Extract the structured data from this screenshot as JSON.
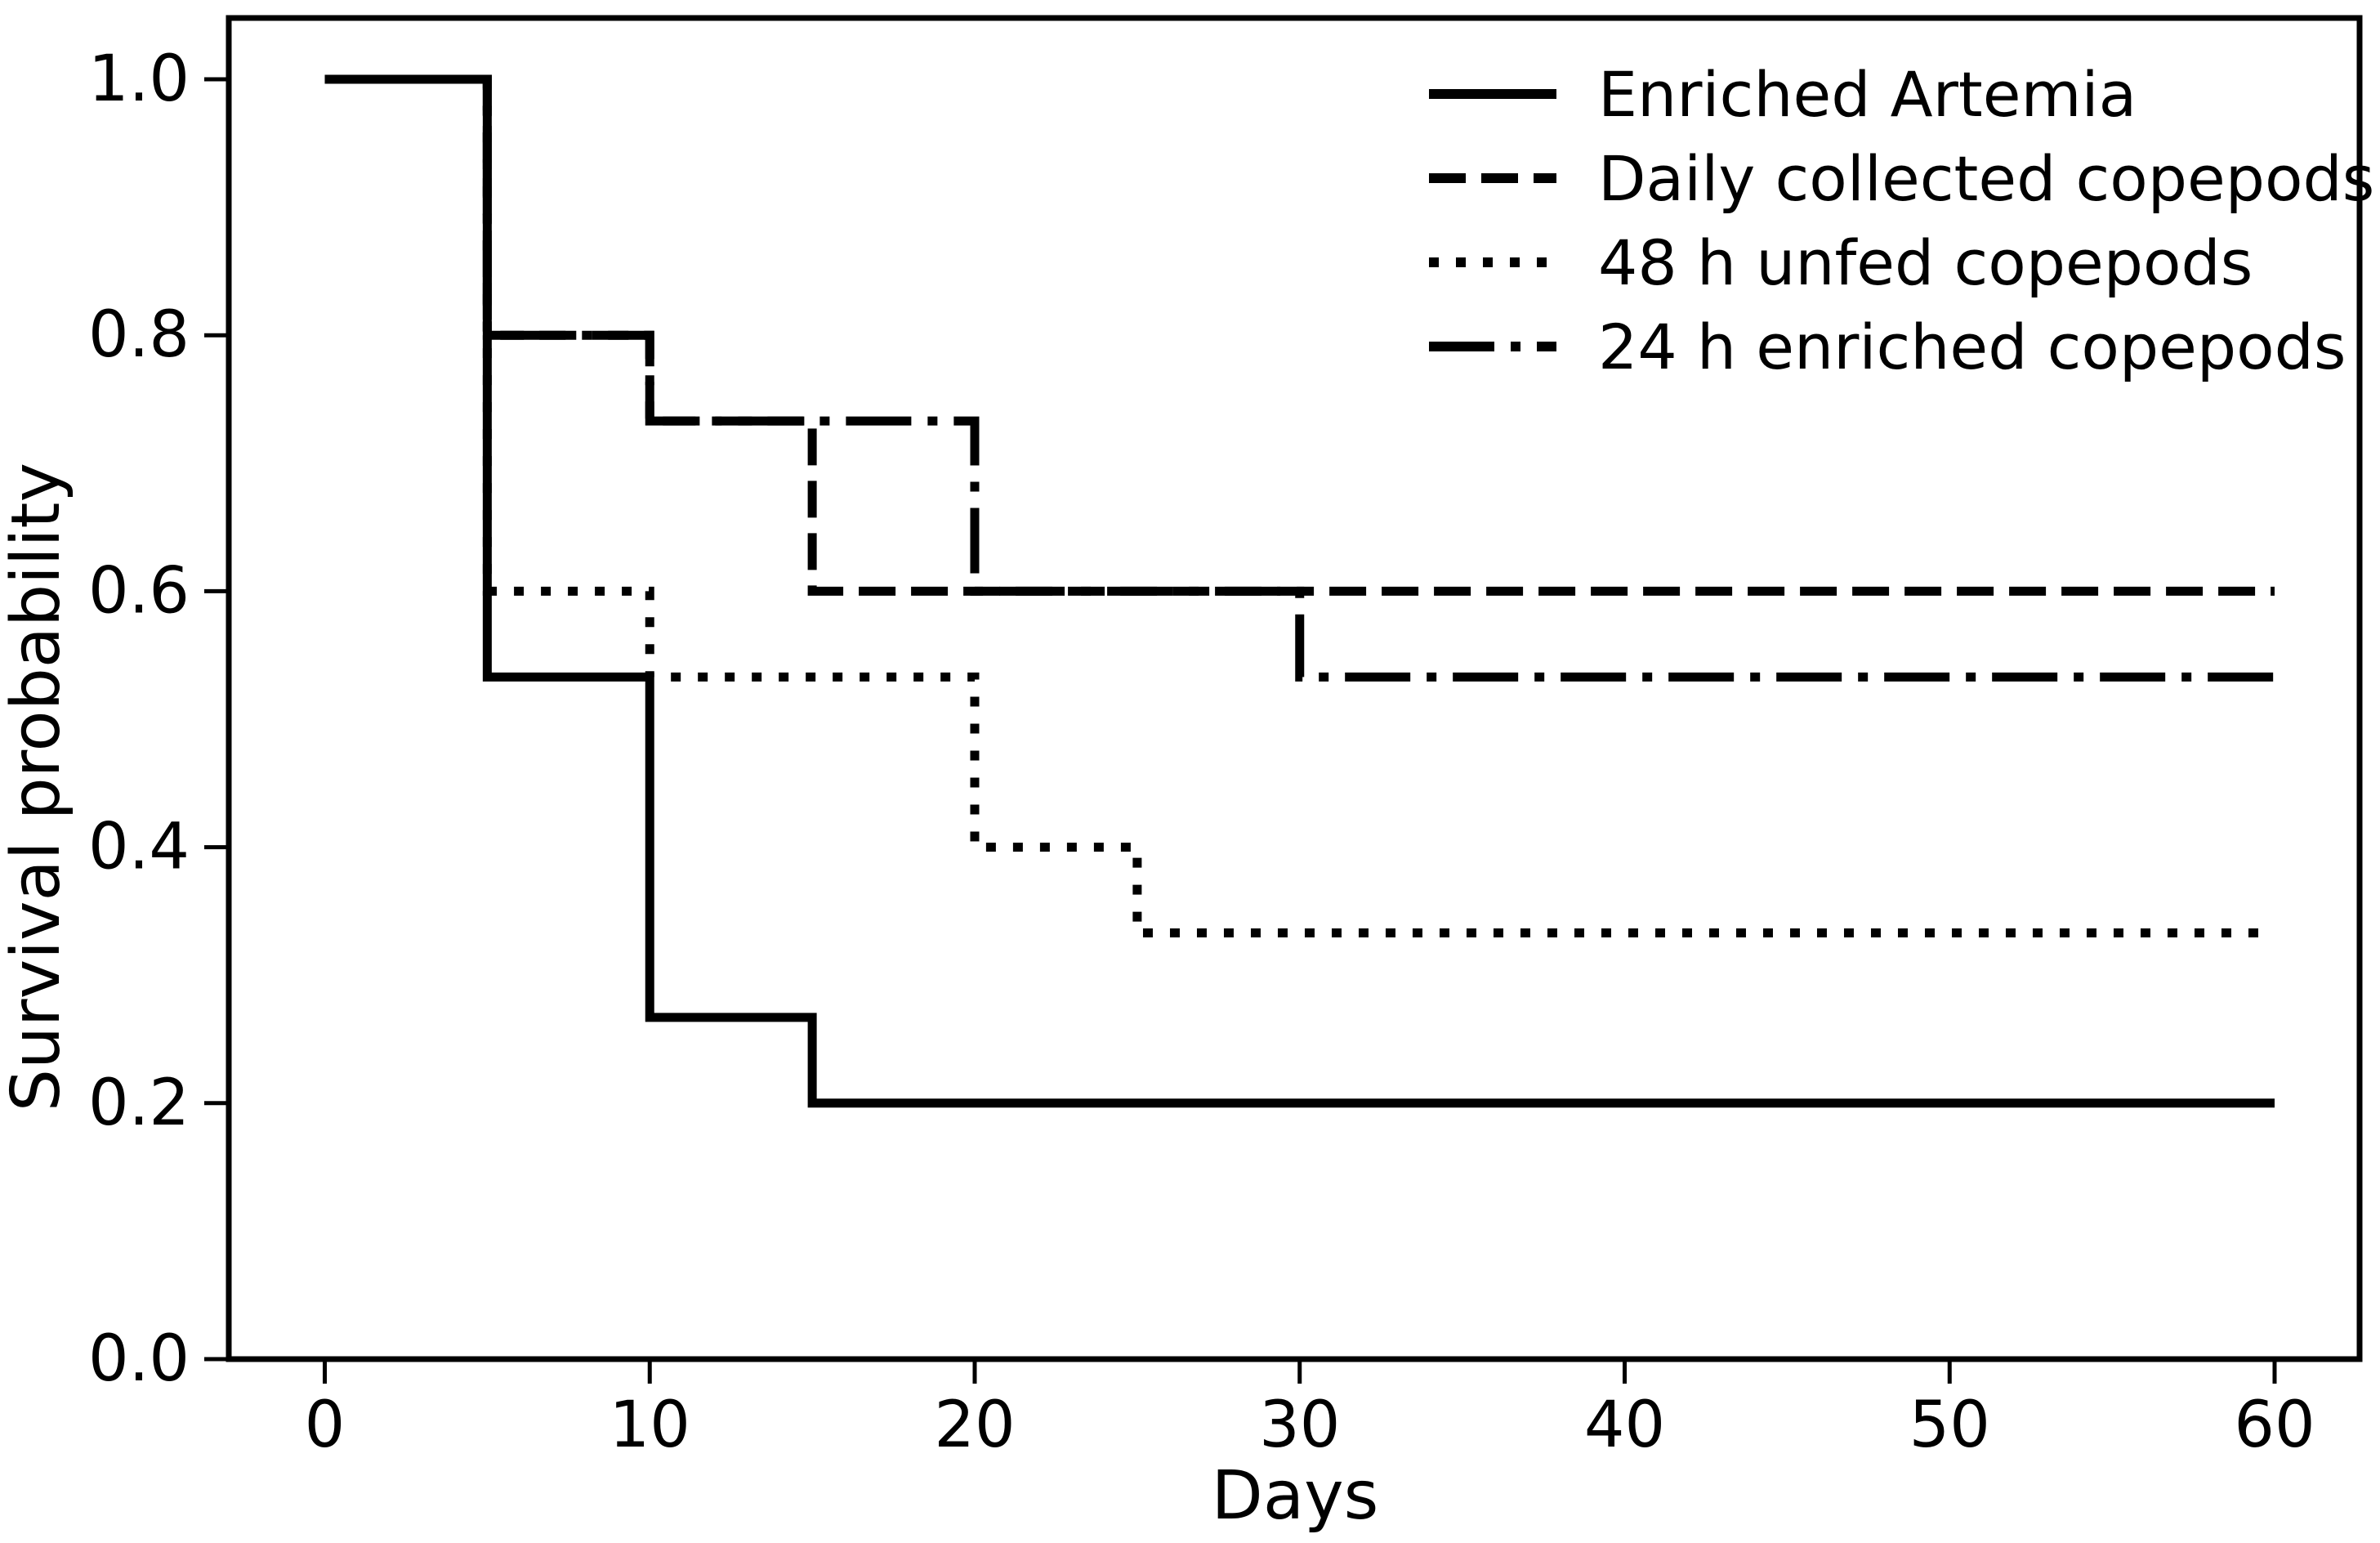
{
  "chart_data": {
    "type": "line",
    "subtype": "kaplan-meier-step",
    "title": "",
    "xlabel": "Days",
    "ylabel": "Survival probability",
    "x_ticks": [
      0,
      10,
      20,
      30,
      40,
      50,
      60
    ],
    "x_tick_labels": [
      "0",
      "10",
      "20",
      "30",
      "40",
      "50",
      "60"
    ],
    "y_ticks": [
      0.0,
      0.2,
      0.4,
      0.6,
      0.8,
      1.0
    ],
    "y_tick_labels": [
      "0.0",
      "0.2",
      "0.4",
      "0.6",
      "0.8",
      "1.0"
    ],
    "xlim": [
      -2.95,
      62.65
    ],
    "ylim": [
      0.0,
      1.05
    ],
    "grid": false,
    "frame": true,
    "line_color": "#000000",
    "line_width": 11,
    "series": [
      {
        "name": "Enriched Artemia",
        "linestyle": "solid",
        "steps": [
          [
            0,
            1.0
          ],
          [
            5,
            0.533
          ],
          [
            10,
            0.267
          ],
          [
            15,
            0.2
          ],
          [
            60,
            0.2
          ]
        ]
      },
      {
        "name": "Daily collected copepods",
        "linestyle": "dashed",
        "steps": [
          [
            0,
            1.0
          ],
          [
            5,
            0.8
          ],
          [
            10,
            0.733
          ],
          [
            15,
            0.6
          ],
          [
            60,
            0.6
          ]
        ]
      },
      {
        "name": "48 h unfed copepods",
        "linestyle": "dotted",
        "steps": [
          [
            0,
            1.0
          ],
          [
            5,
            0.6
          ],
          [
            10,
            0.533
          ],
          [
            20,
            0.4
          ],
          [
            25,
            0.333
          ],
          [
            60,
            0.333
          ]
        ]
      },
      {
        "name": "24 h enriched copepods",
        "linestyle": "dashdot",
        "steps": [
          [
            0,
            1.0
          ],
          [
            5,
            0.8
          ],
          [
            10,
            0.733
          ],
          [
            20,
            0.6
          ],
          [
            30,
            0.533
          ],
          [
            60,
            0.533
          ]
        ]
      }
    ],
    "legend": {
      "position": "upper right",
      "frame": false,
      "entries": [
        "Enriched Artemia",
        "Daily collected copepods",
        "48 h unfed copepods",
        "24 h enriched copepods"
      ]
    }
  }
}
